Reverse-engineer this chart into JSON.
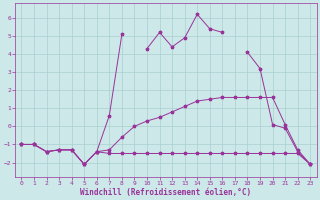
{
  "xlabel": "Windchill (Refroidissement éolien,°C)",
  "background_color": "#cce8e8",
  "grid_color": "#aacfcf",
  "line_color": "#993399",
  "x_values": [
    0,
    1,
    2,
    3,
    4,
    5,
    6,
    7,
    8,
    9,
    10,
    11,
    12,
    13,
    14,
    15,
    16,
    17,
    18,
    19,
    20,
    21,
    22,
    23
  ],
  "series1": [
    -1.0,
    -1.0,
    -1.4,
    -1.3,
    -1.3,
    -2.1,
    -1.4,
    -1.5,
    -1.5,
    -1.5,
    -1.5,
    -1.5,
    -1.5,
    -1.5,
    -1.5,
    -1.5,
    -1.5,
    -1.5,
    -1.5,
    -1.5,
    -1.5,
    -1.5,
    -1.5,
    -2.1
  ],
  "series2": [
    -1.0,
    -1.0,
    -1.4,
    -1.3,
    -1.3,
    -2.1,
    -1.4,
    -1.3,
    -0.6,
    0.0,
    0.3,
    0.5,
    0.8,
    1.1,
    1.4,
    1.5,
    1.6,
    1.6,
    1.6,
    1.6,
    1.6,
    0.1,
    -1.3,
    -2.1
  ],
  "series3_x": [
    0,
    1,
    2,
    3,
    4,
    5,
    6,
    7,
    8,
    10,
    11,
    12,
    13,
    14,
    15,
    16,
    18,
    19,
    20,
    21,
    22,
    23
  ],
  "series3_y": [
    -1.0,
    -1.0,
    -1.4,
    -1.3,
    -1.3,
    -2.1,
    -1.4,
    0.6,
    5.1,
    4.3,
    5.2,
    4.4,
    4.9,
    6.2,
    5.4,
    5.2,
    4.1,
    3.2,
    0.1,
    -0.1,
    -1.4,
    -2.1
  ],
  "xlim": [
    -0.5,
    23.5
  ],
  "ylim": [
    -2.8,
    6.8
  ],
  "yticks": [
    -2,
    -1,
    0,
    1,
    2,
    3,
    4,
    5,
    6
  ],
  "xticks": [
    0,
    1,
    2,
    3,
    4,
    5,
    6,
    7,
    8,
    9,
    10,
    11,
    12,
    13,
    14,
    15,
    16,
    17,
    18,
    19,
    20,
    21,
    22,
    23
  ],
  "tick_fontsize": 4.5,
  "xlabel_fontsize": 5.5
}
